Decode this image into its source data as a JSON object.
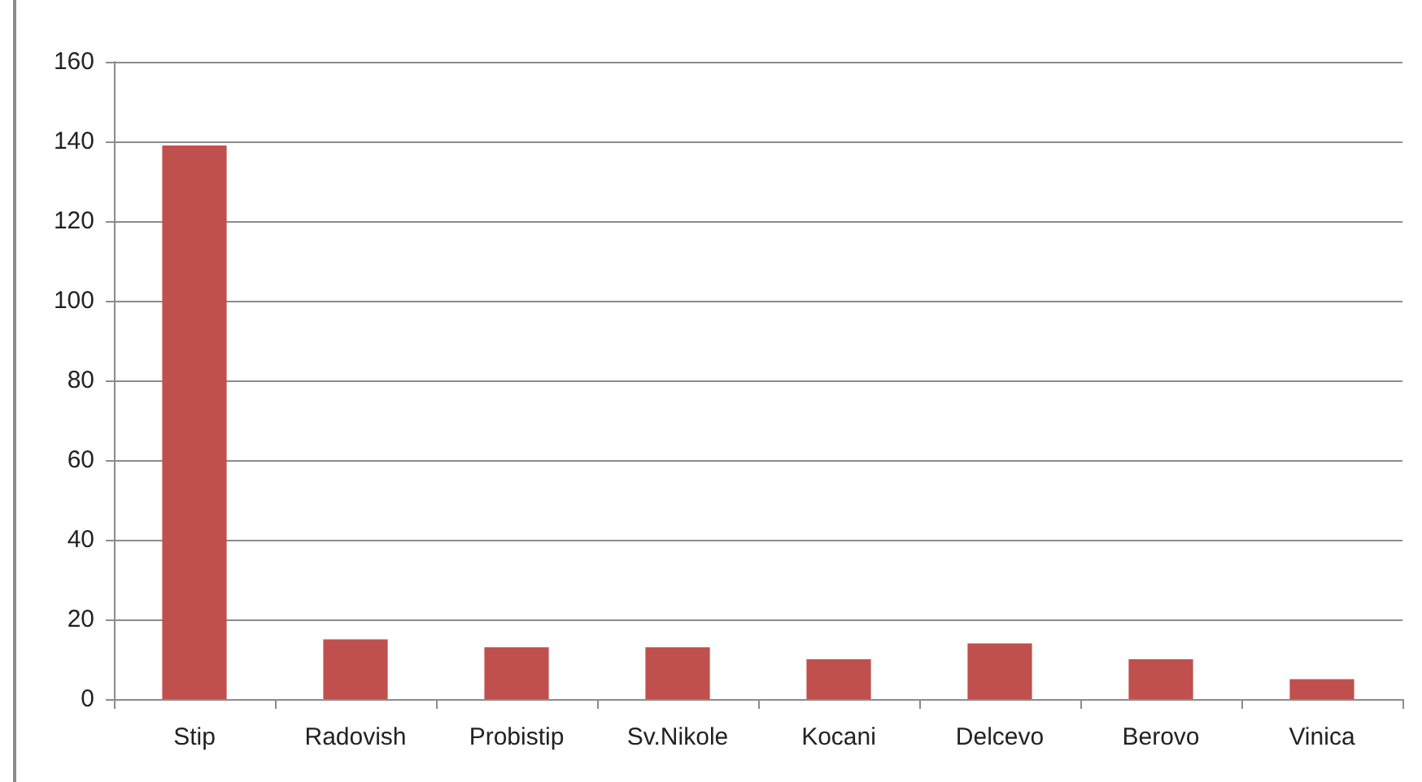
{
  "chart_data": {
    "type": "bar",
    "categories": [
      "Stip",
      "Radovish",
      "Probistip",
      "Sv.Nikole",
      "Kocani",
      "Delcevo",
      "Berovo",
      "Vinica"
    ],
    "values": [
      139,
      15,
      13,
      13,
      10,
      14,
      10,
      5
    ],
    "color": "#c0504d",
    "ylim": [
      0,
      160
    ],
    "yticks": [
      0,
      20,
      40,
      60,
      80,
      100,
      120,
      140,
      160
    ],
    "grid": "y"
  }
}
